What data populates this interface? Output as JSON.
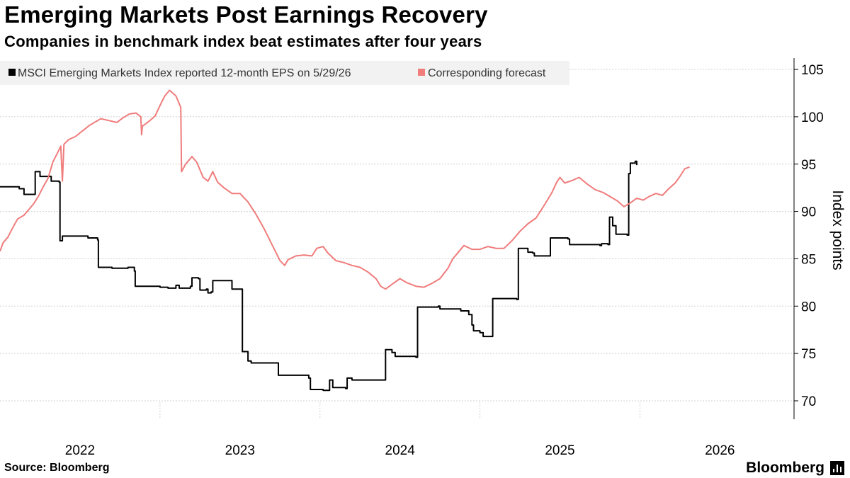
{
  "header": {
    "title": "Emerging Markets Post Earnings Recovery",
    "subtitle": "Companies in benchmark index beat estimates after four years"
  },
  "footer": {
    "source": "Source: Bloomberg",
    "brand": "Bloomberg",
    "brand_icon": "bloomberg-chart-icon"
  },
  "chart_data": {
    "type": "line",
    "ylabel": "Index points",
    "ylim": [
      68,
      106
    ],
    "yticks": [
      70,
      75,
      80,
      85,
      90,
      95,
      100,
      105
    ],
    "xlim": [
      2021.5,
      2026.45
    ],
    "xticks": [
      {
        "label": "2022",
        "x": 2022.0
      },
      {
        "label": "2023",
        "x": 2023.0
      },
      {
        "label": "2024",
        "x": 2024.0
      },
      {
        "label": "2025",
        "x": 2025.0
      },
      {
        "label": "2026",
        "x": 2026.0
      }
    ],
    "grid": "horizontal-dotted",
    "legend": "top-left",
    "colors": {
      "actual": "#000000",
      "forecast": "#f07c7c",
      "grid": "#d0d0d0",
      "legend_bg": "#f2f2f2"
    },
    "series": [
      {
        "name": "MSCI Emerging Markets Index reported 12-month EPS on 5/29/26",
        "color": "#000000",
        "step": true,
        "points": [
          [
            2021.5,
            92.6
          ],
          [
            2021.62,
            92.4
          ],
          [
            2021.65,
            91.8
          ],
          [
            2021.71,
            91.8
          ],
          [
            2021.72,
            94.2
          ],
          [
            2021.75,
            93.7
          ],
          [
            2021.82,
            93.2
          ],
          [
            2021.87,
            93.1
          ],
          [
            2021.875,
            86.9
          ],
          [
            2021.89,
            87.4
          ],
          [
            2022.05,
            87.2
          ],
          [
            2022.11,
            87.0
          ],
          [
            2022.115,
            84.1
          ],
          [
            2022.2,
            84.0
          ],
          [
            2022.3,
            84.1
          ],
          [
            2022.34,
            83.7
          ],
          [
            2022.345,
            82.1
          ],
          [
            2022.5,
            82.0
          ],
          [
            2022.55,
            81.9
          ],
          [
            2022.6,
            82.2
          ],
          [
            2022.62,
            81.9
          ],
          [
            2022.69,
            82.1
          ],
          [
            2022.7,
            83.0
          ],
          [
            2022.74,
            82.9
          ],
          [
            2022.75,
            81.7
          ],
          [
            2022.79,
            81.8
          ],
          [
            2022.8,
            81.4
          ],
          [
            2022.82,
            81.5
          ],
          [
            2022.83,
            82.7
          ],
          [
            2022.9,
            82.7
          ],
          [
            2022.95,
            81.8
          ],
          [
            2023.01,
            81.8
          ],
          [
            2023.015,
            75.2
          ],
          [
            2023.05,
            74.2
          ],
          [
            2023.07,
            74.0
          ],
          [
            2023.23,
            74.0
          ],
          [
            2023.24,
            72.7
          ],
          [
            2023.4,
            72.7
          ],
          [
            2023.43,
            72.4
          ],
          [
            2023.44,
            71.2
          ],
          [
            2023.52,
            71.1
          ],
          [
            2023.55,
            71.1
          ],
          [
            2023.56,
            72.2
          ],
          [
            2023.58,
            71.4
          ],
          [
            2023.66,
            71.3
          ],
          [
            2023.67,
            72.4
          ],
          [
            2023.7,
            72.2
          ],
          [
            2023.9,
            72.2
          ],
          [
            2023.91,
            75.4
          ],
          [
            2023.95,
            75.1
          ],
          [
            2023.97,
            74.7
          ],
          [
            2024.1,
            74.6
          ],
          [
            2024.11,
            79.9
          ],
          [
            2024.24,
            80.0
          ],
          [
            2024.25,
            79.7
          ],
          [
            2024.38,
            79.5
          ],
          [
            2024.43,
            79.1
          ],
          [
            2024.45,
            78.0
          ],
          [
            2024.46,
            77.4
          ],
          [
            2024.5,
            77.2
          ],
          [
            2024.52,
            76.8
          ],
          [
            2024.57,
            76.8
          ],
          [
            2024.58,
            80.8
          ],
          [
            2024.6,
            80.8
          ],
          [
            2024.73,
            80.7
          ],
          [
            2024.74,
            86.1
          ],
          [
            2024.8,
            85.7
          ],
          [
            2024.83,
            85.6
          ],
          [
            2024.84,
            85.3
          ],
          [
            2024.93,
            85.3
          ],
          [
            2024.94,
            87.2
          ],
          [
            2025.0,
            87.2
          ],
          [
            2025.05,
            87.1
          ],
          [
            2025.06,
            86.5
          ],
          [
            2025.25,
            86.4
          ],
          [
            2025.26,
            86.6
          ],
          [
            2025.3,
            86.5
          ],
          [
            2025.31,
            89.4
          ],
          [
            2025.33,
            88.5
          ],
          [
            2025.35,
            87.6
          ],
          [
            2025.42,
            87.5
          ],
          [
            2025.43,
            94.0
          ],
          [
            2025.44,
            95.1
          ],
          [
            2025.47,
            95.3
          ],
          [
            2025.48,
            94.9
          ]
        ]
      },
      {
        "name": "Corresponding forecast",
        "color": "#f07c7c",
        "step": false,
        "points": [
          [
            2021.5,
            85.8
          ],
          [
            2021.52,
            86.7
          ],
          [
            2021.55,
            87.3
          ],
          [
            2021.58,
            88.3
          ],
          [
            2021.61,
            89.2
          ],
          [
            2021.65,
            89.6
          ],
          [
            2021.68,
            90.2
          ],
          [
            2021.71,
            90.8
          ],
          [
            2021.74,
            91.6
          ],
          [
            2021.77,
            92.6
          ],
          [
            2021.8,
            93.5
          ],
          [
            2021.83,
            95.2
          ],
          [
            2021.86,
            96.2
          ],
          [
            2021.88,
            96.9
          ],
          [
            2021.89,
            93.2
          ],
          [
            2021.9,
            97.1
          ],
          [
            2021.93,
            97.6
          ],
          [
            2021.97,
            97.9
          ],
          [
            2022.0,
            98.3
          ],
          [
            2022.03,
            98.7
          ],
          [
            2022.06,
            99.1
          ],
          [
            2022.1,
            99.5
          ],
          [
            2022.13,
            99.8
          ],
          [
            2022.18,
            99.6
          ],
          [
            2022.23,
            99.4
          ],
          [
            2022.27,
            99.9
          ],
          [
            2022.31,
            100.3
          ],
          [
            2022.35,
            100.4
          ],
          [
            2022.38,
            100.0
          ],
          [
            2022.385,
            98.1
          ],
          [
            2022.39,
            99.0
          ],
          [
            2022.43,
            99.5
          ],
          [
            2022.47,
            100.1
          ],
          [
            2022.5,
            101.2
          ],
          [
            2022.53,
            102.2
          ],
          [
            2022.56,
            102.8
          ],
          [
            2022.6,
            102.2
          ],
          [
            2022.63,
            101.0
          ],
          [
            2022.635,
            94.2
          ],
          [
            2022.66,
            95.0
          ],
          [
            2022.7,
            95.8
          ],
          [
            2022.73,
            95.2
          ],
          [
            2022.77,
            93.6
          ],
          [
            2022.8,
            93.2
          ],
          [
            2022.83,
            94.2
          ],
          [
            2022.86,
            93.1
          ],
          [
            2022.9,
            92.5
          ],
          [
            2022.95,
            91.9
          ],
          [
            2023.0,
            91.9
          ],
          [
            2023.05,
            91.0
          ],
          [
            2023.1,
            89.7
          ],
          [
            2023.15,
            88.2
          ],
          [
            2023.2,
            86.5
          ],
          [
            2023.25,
            84.8
          ],
          [
            2023.28,
            84.3
          ],
          [
            2023.3,
            84.9
          ],
          [
            2023.35,
            85.3
          ],
          [
            2023.4,
            85.4
          ],
          [
            2023.45,
            85.3
          ],
          [
            2023.48,
            86.1
          ],
          [
            2023.52,
            86.3
          ],
          [
            2023.55,
            85.6
          ],
          [
            2023.6,
            84.8
          ],
          [
            2023.65,
            84.6
          ],
          [
            2023.7,
            84.3
          ],
          [
            2023.75,
            84.1
          ],
          [
            2023.8,
            83.6
          ],
          [
            2023.85,
            82.9
          ],
          [
            2023.88,
            82.1
          ],
          [
            2023.91,
            81.8
          ],
          [
            2023.95,
            82.3
          ],
          [
            2024.0,
            82.9
          ],
          [
            2024.04,
            82.5
          ],
          [
            2024.1,
            82.1
          ],
          [
            2024.15,
            82.0
          ],
          [
            2024.2,
            82.4
          ],
          [
            2024.25,
            82.9
          ],
          [
            2024.3,
            84.0
          ],
          [
            2024.33,
            85.0
          ],
          [
            2024.37,
            85.8
          ],
          [
            2024.4,
            86.4
          ],
          [
            2024.45,
            86.0
          ],
          [
            2024.5,
            86.0
          ],
          [
            2024.55,
            86.3
          ],
          [
            2024.6,
            86.1
          ],
          [
            2024.65,
            86.1
          ],
          [
            2024.7,
            86.9
          ],
          [
            2024.75,
            87.9
          ],
          [
            2024.8,
            88.7
          ],
          [
            2024.85,
            89.3
          ],
          [
            2024.9,
            90.6
          ],
          [
            2024.95,
            92.0
          ],
          [
            2024.98,
            93.1
          ],
          [
            2025.0,
            93.6
          ],
          [
            2025.03,
            93.0
          ],
          [
            2025.08,
            93.3
          ],
          [
            2025.12,
            93.6
          ],
          [
            2025.17,
            92.9
          ],
          [
            2025.22,
            92.3
          ],
          [
            2025.27,
            92.0
          ],
          [
            2025.32,
            91.5
          ],
          [
            2025.36,
            91.1
          ],
          [
            2025.4,
            90.5
          ],
          [
            2025.44,
            90.9
          ],
          [
            2025.48,
            91.4
          ],
          [
            2025.52,
            91.2
          ],
          [
            2025.56,
            91.6
          ],
          [
            2025.6,
            91.9
          ],
          [
            2025.64,
            91.7
          ],
          [
            2025.68,
            92.4
          ],
          [
            2025.72,
            93.0
          ],
          [
            2025.75,
            93.7
          ],
          [
            2025.78,
            94.5
          ],
          [
            2025.81,
            94.7
          ]
        ]
      }
    ]
  }
}
